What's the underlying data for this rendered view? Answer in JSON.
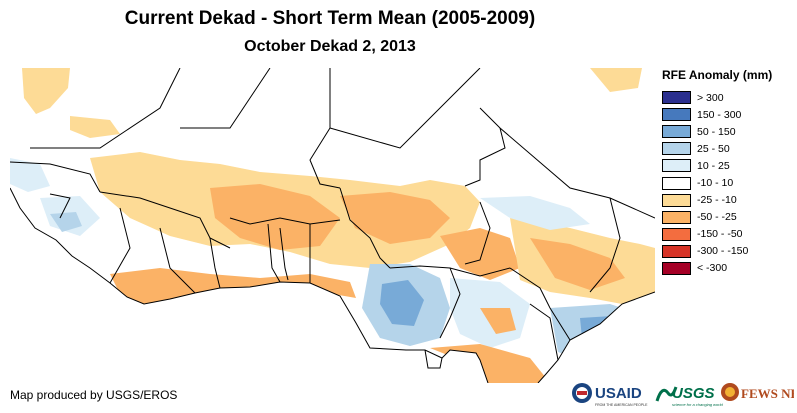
{
  "title": "Current Dekad - Short Term Mean (2005-2009)",
  "subtitle": "October Dekad 2, 2013",
  "legend": {
    "title": "RFE Anomaly (mm)",
    "items": [
      {
        "label": "> 300",
        "color": "#2b2f8f"
      },
      {
        "label": "150 - 300",
        "color": "#4679bd"
      },
      {
        "label": "50 - 150",
        "color": "#78aad7"
      },
      {
        "label": "25 - 50",
        "color": "#b5d4ea"
      },
      {
        "label": "10 - 25",
        "color": "#ddeef8"
      },
      {
        "label": "-10 - 10",
        "color": "#ffffff"
      },
      {
        "label": "-25 - -10",
        "color": "#fddb96"
      },
      {
        "label": "-50 - -25",
        "color": "#fbb266"
      },
      {
        "label": "-150 - -50",
        "color": "#f36d3f"
      },
      {
        "label": "-300 - -150",
        "color": "#d63427"
      },
      {
        "label": "< -300",
        "color": "#a50026"
      }
    ]
  },
  "credit": "Map produced by USGS/EROS",
  "logos": {
    "usaid": "USAID",
    "usaid_tagline": "FROM THE AMERICAN PEOPLE",
    "usgs": "USGS",
    "usgs_tagline": "science for a changing world",
    "fewsnet": "FEWS NET"
  }
}
